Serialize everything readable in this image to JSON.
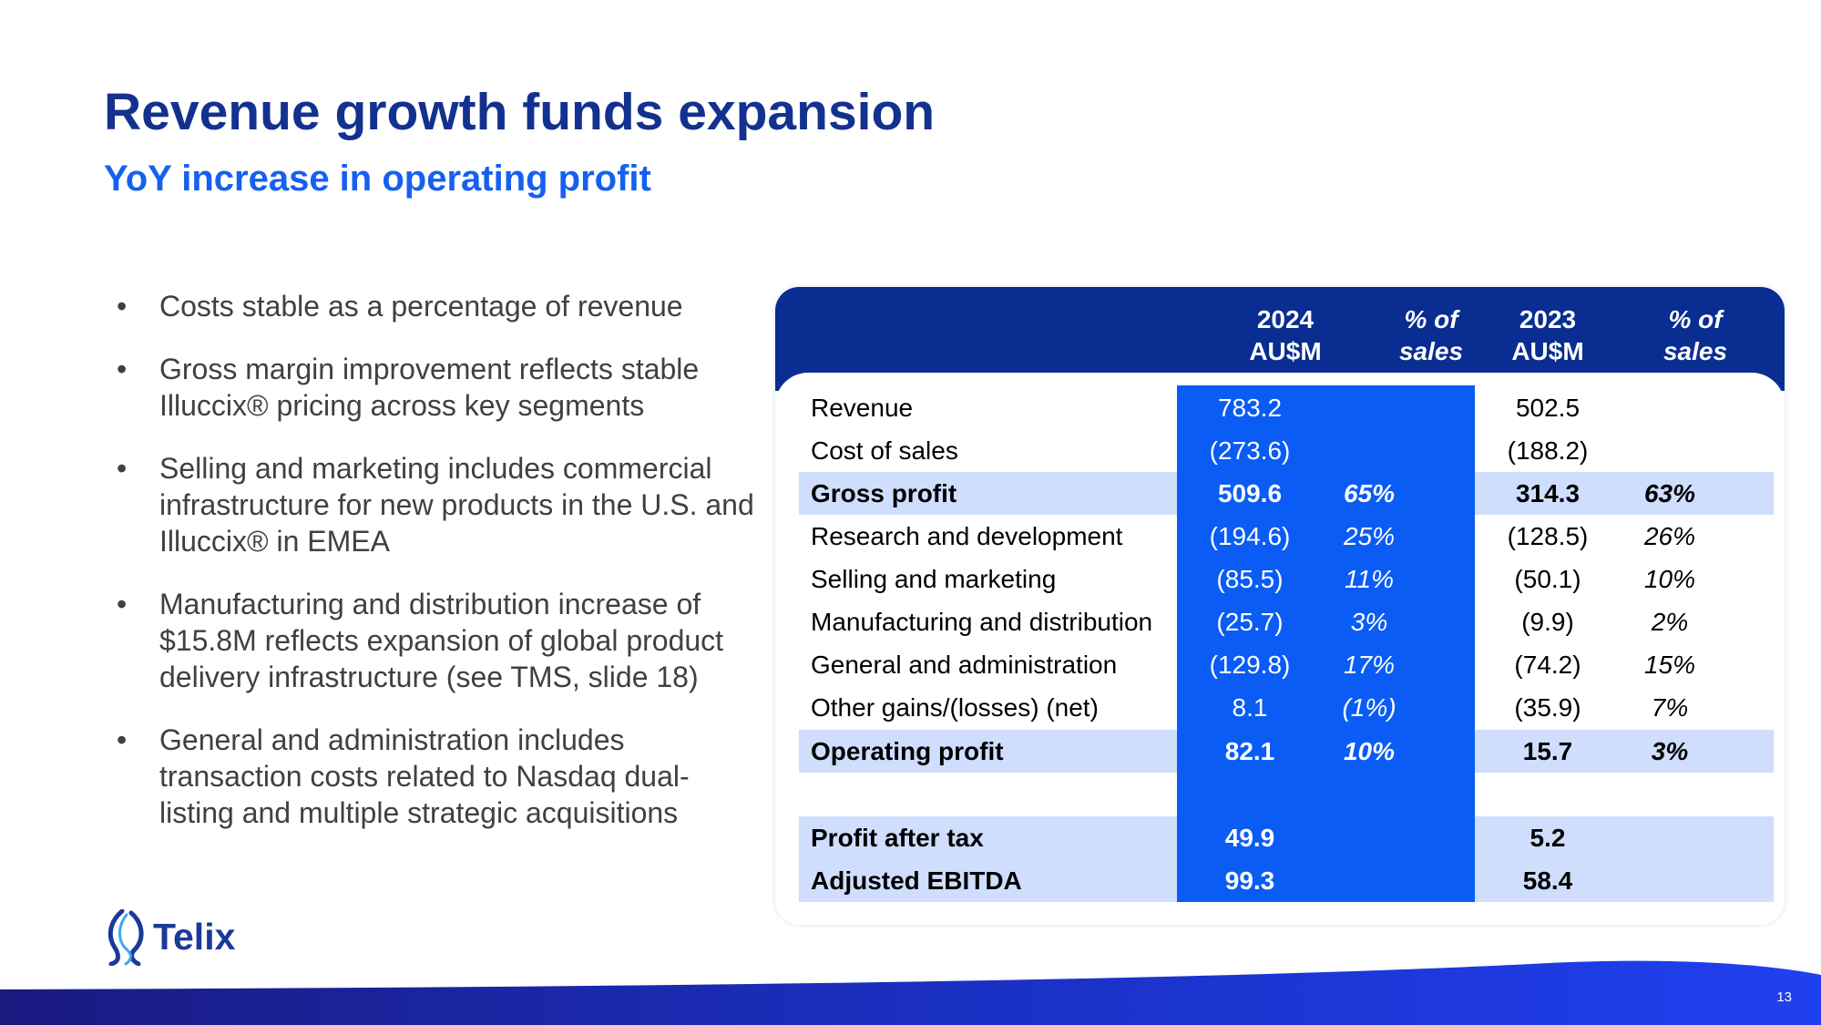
{
  "title": "Revenue growth funds expansion",
  "subtitle": "YoY increase in operating profit",
  "bullets": [
    "Costs stable as a percentage of revenue",
    "Gross margin improvement reflects stable Illuccix® pricing across key segments",
    "Selling and marketing includes commercial infrastructure for new products in the U.S. and Illuccix® in EMEA",
    "Manufacturing and distribution increase of $15.8M reflects expansion of global product delivery infrastructure (see TMS, slide 18)",
    "General and administration includes transaction costs related to Nasdaq dual-listing and multiple strategic acquisitions"
  ],
  "table": {
    "headers": {
      "y2024": [
        "2024",
        "AU$M"
      ],
      "pct2024": [
        "% of",
        "sales"
      ],
      "y2023": [
        "2023",
        "AU$M"
      ],
      "pct2023": [
        "% of",
        "sales"
      ]
    },
    "rows": [
      {
        "label": "Revenue",
        "v2024": "783.2",
        "p2024": "",
        "v2023": "502.5",
        "p2023": ""
      },
      {
        "label": "Cost of sales",
        "v2024": "(273.6)",
        "p2024": "",
        "v2023": "(188.2)",
        "p2023": ""
      },
      {
        "label": "Gross profit",
        "v2024": "509.6",
        "p2024": "65%",
        "v2023": "314.3",
        "p2023": "63%"
      },
      {
        "label": "Research and development",
        "v2024": "(194.6)",
        "p2024": "25%",
        "v2023": "(128.5)",
        "p2023": "26%"
      },
      {
        "label": "Selling and marketing",
        "v2024": "(85.5)",
        "p2024": "11%",
        "v2023": "(50.1)",
        "p2023": "10%"
      },
      {
        "label": "Manufacturing and distribution",
        "v2024": "(25.7)",
        "p2024": "3%",
        "v2023": "(9.9)",
        "p2023": "2%"
      },
      {
        "label": "General and administration",
        "v2024": "(129.8)",
        "p2024": "17%",
        "v2023": "(74.2)",
        "p2023": "15%"
      },
      {
        "label": "Other gains/(losses) (net)",
        "v2024": "8.1",
        "p2024": "(1%)",
        "v2023": "(35.9)",
        "p2023": "7%"
      },
      {
        "label": "Operating profit",
        "v2024": "82.1",
        "p2024": "10%",
        "v2023": "15.7",
        "p2023": "3%"
      },
      {
        "label": "Profit after tax",
        "v2024": "49.9",
        "p2024": "",
        "v2023": "5.2",
        "p2023": ""
      },
      {
        "label": "Adjusted EBITDA",
        "v2024": "99.3",
        "p2024": "",
        "v2023": "58.4",
        "p2023": ""
      }
    ]
  },
  "logo": {
    "name": "Telix",
    "icon": "telix-helix-icon"
  },
  "page_number": "13",
  "colors": {
    "title": "#13318f",
    "subtitle": "#1560f0",
    "header_bg": "#0a2d91",
    "col2024_bg": "#0a5cf5",
    "highlight": "#cfdefc"
  }
}
